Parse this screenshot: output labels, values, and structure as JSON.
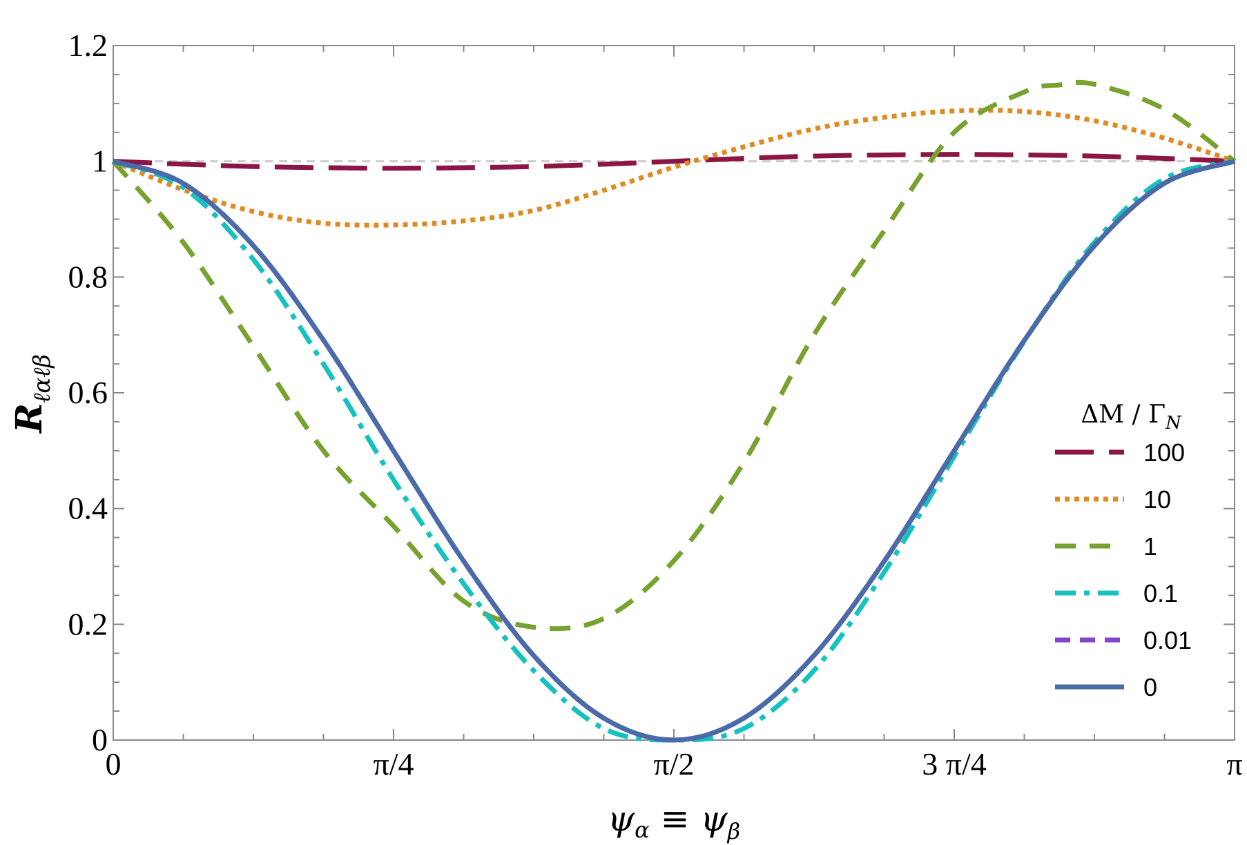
{
  "chart_data": {
    "type": "line",
    "title": "",
    "xlabel": "ψα ≡ ψβ",
    "xlabel_parts": {
      "lhs": "ψ",
      "lhs_sub": "α",
      "eq": "≡",
      "rhs": "ψ",
      "rhs_sub": "β"
    },
    "ylabel": "Rℓαℓβ",
    "ylabel_parts": {
      "main": "R",
      "sub": "ℓαℓβ"
    },
    "xlim": [
      0,
      3.14159
    ],
    "ylim": [
      0,
      1.2
    ],
    "x_ticks": [
      {
        "value": 0,
        "label": "0"
      },
      {
        "value": 0.7854,
        "label": "π/4"
      },
      {
        "value": 1.5708,
        "label": "π/2"
      },
      {
        "value": 2.3562,
        "label": "3 π/4"
      },
      {
        "value": 3.14159,
        "label": "π"
      }
    ],
    "y_ticks": [
      {
        "value": 0,
        "label": "0"
      },
      {
        "value": 0.2,
        "label": "0.2"
      },
      {
        "value": 0.4,
        "label": "0.4"
      },
      {
        "value": 0.6,
        "label": "0.6"
      },
      {
        "value": 0.8,
        "label": "0.8"
      },
      {
        "value": 1.0,
        "label": "1"
      },
      {
        "value": 1.2,
        "label": "1.2"
      }
    ],
    "reference_line": {
      "y": 1.0,
      "color": "#cccccc",
      "style": "dashed"
    },
    "legend": {
      "title": "ΔM / Γ",
      "title_sub": "N",
      "position": "right"
    },
    "series": [
      {
        "name": "100",
        "color": "#8b1645",
        "dash": "long-dash",
        "x": [
          0,
          0.196,
          0.393,
          0.589,
          0.785,
          0.982,
          1.178,
          1.374,
          1.571,
          1.767,
          1.963,
          2.16,
          2.356,
          2.553,
          2.749,
          2.945,
          3.142
        ],
        "y": [
          1.0,
          0.995,
          0.991,
          0.989,
          0.988,
          0.989,
          0.991,
          0.995,
          1.0,
          1.005,
          1.009,
          1.011,
          1.012,
          1.011,
          1.009,
          1.005,
          1.0
        ]
      },
      {
        "name": "10",
        "color": "#e08a22",
        "dash": "dotted",
        "x": [
          0,
          0.196,
          0.393,
          0.589,
          0.785,
          0.982,
          1.178,
          1.374,
          1.571,
          1.767,
          1.963,
          2.16,
          2.356,
          2.553,
          2.749,
          2.945,
          3.142
        ],
        "y": [
          1.0,
          0.951,
          0.913,
          0.893,
          0.89,
          0.897,
          0.915,
          0.95,
          0.99,
          1.025,
          1.056,
          1.076,
          1.087,
          1.086,
          1.07,
          1.04,
          1.0
        ]
      },
      {
        "name": "1",
        "color": "#78a22f",
        "dash": "dashed",
        "x": [
          0,
          0.196,
          0.393,
          0.589,
          0.785,
          0.982,
          1.178,
          1.374,
          1.571,
          1.767,
          1.963,
          2.16,
          2.356,
          2.553,
          2.651,
          2.749,
          2.945,
          3.142
        ],
        "y": [
          1.0,
          0.86,
          0.68,
          0.5,
          0.37,
          0.24,
          0.195,
          0.21,
          0.31,
          0.48,
          0.7,
          0.88,
          1.05,
          1.12,
          1.132,
          1.133,
          1.09,
          1.0
        ]
      },
      {
        "name": "0.1",
        "color": "#17c1c0",
        "dash": "dash-dot",
        "x": [
          0,
          0.196,
          0.393,
          0.589,
          0.785,
          0.982,
          1.178,
          1.374,
          1.571,
          1.767,
          1.963,
          2.16,
          2.356,
          2.553,
          2.749,
          2.945,
          3.142
        ],
        "y": [
          1.0,
          0.955,
          0.83,
          0.65,
          0.45,
          0.27,
          0.12,
          0.02,
          0.0,
          0.02,
          0.12,
          0.29,
          0.49,
          0.69,
          0.86,
          0.97,
          1.0
        ]
      },
      {
        "name": "0.01",
        "color": "#8443c9",
        "dash": "dashed",
        "x": [
          0,
          0.196,
          0.393,
          0.589,
          0.785,
          0.982,
          1.178,
          1.374,
          1.571,
          1.767,
          1.963,
          2.16,
          2.356,
          2.553,
          2.749,
          2.945,
          3.142
        ],
        "y": [
          1.0,
          0.962,
          0.854,
          0.691,
          0.5,
          0.309,
          0.146,
          0.038,
          0.0,
          0.038,
          0.146,
          0.309,
          0.5,
          0.691,
          0.854,
          0.962,
          1.0
        ]
      },
      {
        "name": "0",
        "color": "#4a6aa8",
        "dash": "solid",
        "x": [
          0,
          0.196,
          0.393,
          0.589,
          0.785,
          0.982,
          1.178,
          1.374,
          1.571,
          1.767,
          1.963,
          2.16,
          2.356,
          2.553,
          2.749,
          2.945,
          3.142
        ],
        "y": [
          1.0,
          0.962,
          0.854,
          0.691,
          0.5,
          0.309,
          0.146,
          0.038,
          0.0,
          0.038,
          0.146,
          0.309,
          0.5,
          0.691,
          0.854,
          0.962,
          1.0
        ]
      }
    ]
  }
}
